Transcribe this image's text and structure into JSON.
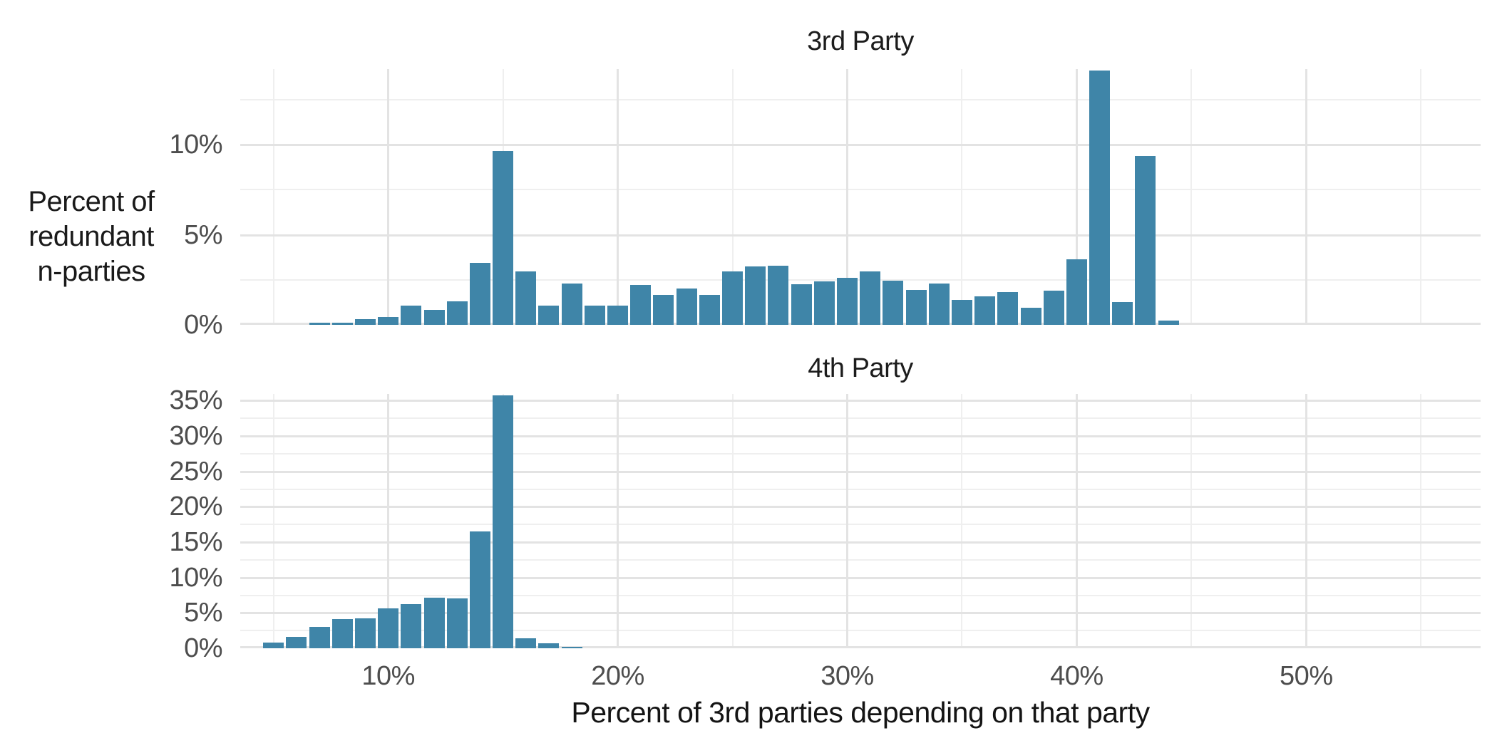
{
  "figure": {
    "background": "#ffffff",
    "bar_color": "#3F85A8",
    "grid_major_color": "#e3e3e3",
    "grid_minor_color": "#efefef",
    "tick_label_color": "#4d4d4d",
    "facet_title_color": "#1c1c1c",
    "axis_title_color": "#141414"
  },
  "chart_data": {
    "type": "bar",
    "kind": "faceted_histogram",
    "xlabel": "Percent of 3rd parties depending on that party",
    "ylabel": "Percent of\nredundant\nn-parties",
    "xlim": [
      3.55,
      57.6
    ],
    "binwidth_percent": 1,
    "x_major_ticks": [
      {
        "value": 10,
        "label": "10%"
      },
      {
        "value": 20,
        "label": "20%"
      },
      {
        "value": 30,
        "label": "30%"
      },
      {
        "value": 40,
        "label": "40%"
      },
      {
        "value": 50,
        "label": "50%"
      }
    ],
    "x_minor_gridlines": [
      5,
      15,
      25,
      35,
      45,
      55
    ],
    "grid": true,
    "legend": "none",
    "facets": [
      {
        "title": "3rd Party",
        "ylim": [
          0,
          14.19
        ],
        "y_major_ticks": [
          {
            "value": 0,
            "label": "0%"
          },
          {
            "value": 5,
            "label": "5%"
          },
          {
            "value": 10,
            "label": "10%"
          }
        ],
        "y_minor_gridlines": [
          2.5,
          7.5,
          12.5
        ],
        "x": [
          7,
          8,
          9,
          10,
          11,
          12,
          13,
          14,
          15,
          16,
          17,
          18,
          19,
          20,
          21,
          22,
          23,
          24,
          25,
          26,
          27,
          28,
          29,
          30,
          31,
          32,
          33,
          34,
          35,
          36,
          37,
          38,
          39,
          40,
          41,
          42,
          43,
          44
        ],
        "values": [
          0.1,
          0.1,
          0.3,
          0.45,
          1.05,
          0.85,
          1.3,
          3.45,
          9.65,
          2.95,
          1.05,
          2.3,
          1.05,
          1.05,
          2.2,
          1.65,
          2.0,
          1.65,
          2.95,
          3.25,
          3.3,
          2.25,
          2.4,
          2.6,
          2.95,
          2.45,
          1.95,
          2.3,
          1.4,
          1.6,
          1.8,
          0.95,
          1.9,
          3.65,
          14.1,
          1.25,
          9.35,
          0.25
        ]
      },
      {
        "title": "4th Party",
        "ylim": [
          0,
          35.95
        ],
        "y_major_ticks": [
          {
            "value": 0,
            "label": "0%"
          },
          {
            "value": 5,
            "label": "5%"
          },
          {
            "value": 10,
            "label": "10%"
          },
          {
            "value": 15,
            "label": "15%"
          },
          {
            "value": 20,
            "label": "20%"
          },
          {
            "value": 25,
            "label": "25%"
          },
          {
            "value": 30,
            "label": "30%"
          },
          {
            "value": 35,
            "label": "35%"
          }
        ],
        "y_minor_gridlines": [
          2.5,
          7.5,
          12.5,
          17.5,
          22.5,
          27.5,
          32.5
        ],
        "x": [
          5,
          6,
          7,
          8,
          9,
          10,
          11,
          12,
          13,
          14,
          15,
          16,
          17,
          18
        ],
        "values": [
          0.85,
          1.6,
          3.0,
          4.1,
          4.2,
          5.6,
          6.2,
          7.2,
          7.1,
          16.55,
          35.7,
          1.4,
          0.75,
          0.1
        ]
      }
    ]
  }
}
